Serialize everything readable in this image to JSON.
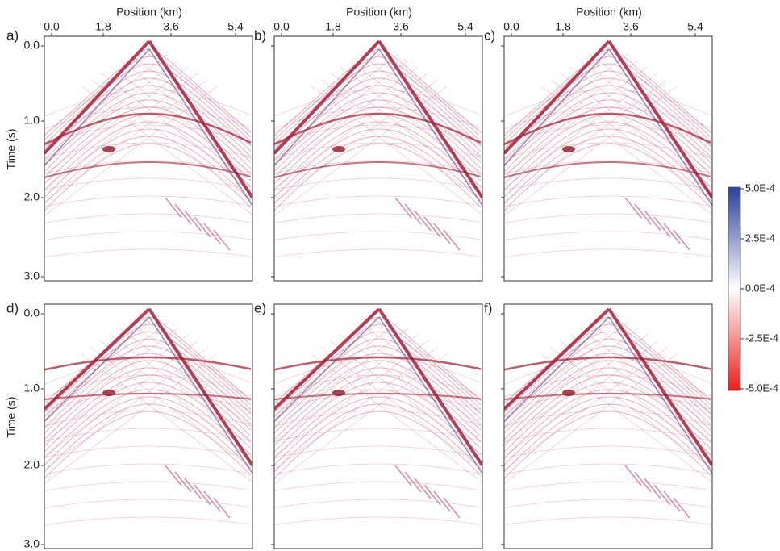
{
  "panels": [
    {
      "label": "a)"
    },
    {
      "label": "b)"
    },
    {
      "label": "c)"
    },
    {
      "label": "d)"
    },
    {
      "label": "e)"
    },
    {
      "label": "f)"
    }
  ],
  "x_axis": {
    "label": "Position (km)",
    "ticks": [
      "0.0",
      "1.8",
      "3.6",
      "5.4"
    ]
  },
  "y_axis": {
    "label": "Time (s)",
    "ticks": [
      "0.0",
      "1.0",
      "2.0",
      "3.0"
    ]
  },
  "colorbar": {
    "ticks": [
      "5.0E-4",
      "2.5E-4",
      "0.0E-4",
      "-2.5E-4",
      "-5.0E-4"
    ]
  }
}
